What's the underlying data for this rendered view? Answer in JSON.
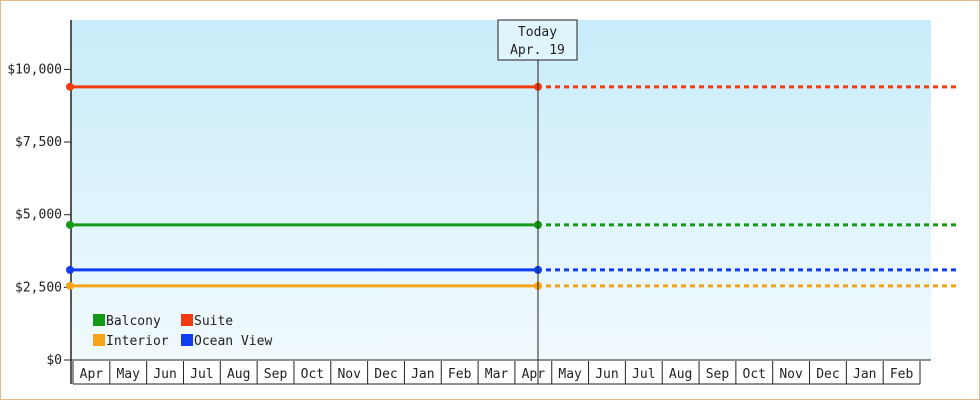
{
  "chart_data": {
    "type": "line",
    "title": "",
    "xlabel": "",
    "ylabel": "",
    "ylim": [
      0,
      11700
    ],
    "y_ticks": [
      0,
      2500,
      5000,
      7500,
      10000
    ],
    "y_tick_labels": [
      "$0",
      "$2,500",
      "$5,000",
      "$7,500",
      "$10,000"
    ],
    "x_tick_labels": [
      "Apr",
      "May",
      "Jun",
      "Jul",
      "Aug",
      "Sep",
      "Oct",
      "Nov",
      "Dec",
      "Jan",
      "Feb",
      "Mar",
      "Apr",
      "May",
      "Jun",
      "Jul",
      "Aug",
      "Sep",
      "Oct",
      "Nov",
      "Dec",
      "Jan",
      "Feb"
    ],
    "today_marker": {
      "line1": "Today",
      "line2": "Apr. 19"
    },
    "x": [
      "Apr",
      "Apr. 19"
    ],
    "projection": "dotted continuation after Today",
    "series": [
      {
        "name": "Suite",
        "color": "#f23c0f",
        "values": [
          9400,
          9400
        ]
      },
      {
        "name": "Balcony",
        "color": "#159a15",
        "values": [
          4650,
          4650
        ]
      },
      {
        "name": "Ocean View",
        "color": "#0f3df2",
        "values": [
          3100,
          3100
        ]
      },
      {
        "name": "Interior",
        "color": "#f5a418",
        "values": [
          2550,
          2550
        ]
      }
    ],
    "legend": {
      "placement": "bottom-left",
      "items": [
        "Balcony",
        "Suite",
        "Interior",
        "Ocean View"
      ]
    },
    "background": {
      "top": "#c8ecfa",
      "bottom": "#f1fafd"
    },
    "grid": false
  }
}
